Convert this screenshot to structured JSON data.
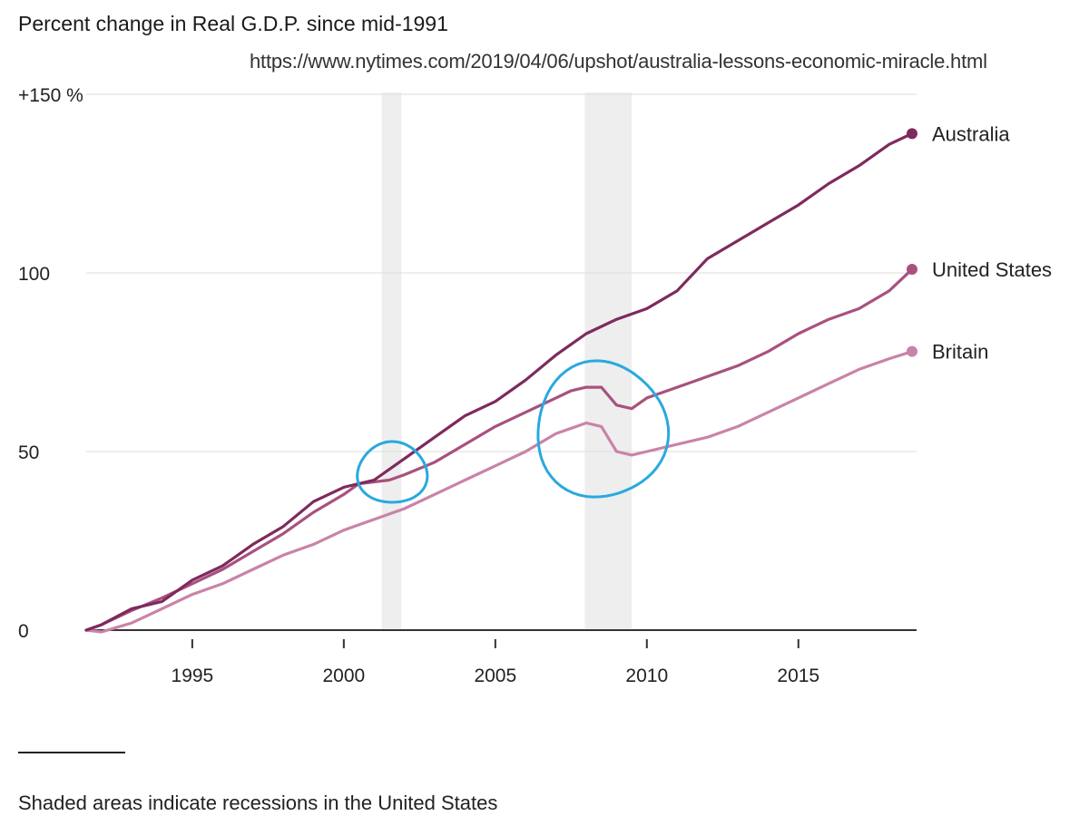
{
  "header": {
    "source_url": "https://www.nytimes.com/2019/04/06/upshot/australia-lessons-economic-miracle.html"
  },
  "footer": {
    "note": "Shaded areas indicate recessions in the United States"
  },
  "colors": {
    "australia": "#7e2a5d",
    "united_states": "#a8517f",
    "britain": "#c983a8",
    "recession_band": "#eeeeee",
    "gridline": "#dddddd",
    "axis": "#333333",
    "annotation_circle": "#29a9de"
  },
  "chart_data": {
    "type": "line",
    "title": "Percent change in Real G.D.P. since mid-1991",
    "xlabel": "",
    "ylabel": "",
    "xlim": [
      1991.5,
      2018.9
    ],
    "ylim": [
      0,
      150
    ],
    "x_ticks": [
      1995,
      2000,
      2005,
      2010,
      2015
    ],
    "x_tick_labels": [
      "1995",
      "2000",
      "2005",
      "2010",
      "2015"
    ],
    "y_ticks": [
      0,
      50,
      100,
      150
    ],
    "y_tick_labels": [
      "0",
      "50",
      "100",
      "+150 %"
    ],
    "grid": true,
    "legend": "end-of-line labels, right",
    "recessions": [
      {
        "start": 2001.25,
        "end": 2001.9
      },
      {
        "start": 2007.95,
        "end": 2009.5
      }
    ],
    "series": [
      {
        "name": "Australia",
        "color": "#7e2a5d",
        "x": [
          1991.5,
          1992,
          1993,
          1994,
          1995,
          1996,
          1997,
          1998,
          1999,
          2000,
          2001,
          2002,
          2003,
          2004,
          2005,
          2006,
          2007,
          2008,
          2009,
          2010,
          2011,
          2012,
          2013,
          2014,
          2015,
          2016,
          2017,
          2018,
          2018.75
        ],
        "values": [
          0,
          1.5,
          6,
          8,
          14,
          18,
          24,
          29,
          36,
          40,
          42,
          48,
          54,
          60,
          64,
          70,
          77,
          83,
          87,
          90,
          95,
          104,
          109,
          114,
          119,
          125,
          130,
          136,
          139
        ]
      },
      {
        "name": "United States",
        "color": "#a8517f",
        "x": [
          1991.5,
          1992,
          1993,
          1994,
          1995,
          1996,
          1997,
          1998,
          1999,
          2000,
          2000.5,
          2001,
          2001.5,
          2002,
          2003,
          2004,
          2005,
          2006,
          2007,
          2007.5,
          2008,
          2008.5,
          2009,
          2009.5,
          2010,
          2011,
          2012,
          2013,
          2014,
          2015,
          2016,
          2017,
          2018,
          2018.75
        ],
        "values": [
          0,
          1.5,
          5.5,
          9,
          13,
          17,
          22,
          27,
          33,
          38,
          41,
          41.5,
          42,
          43.5,
          47,
          52,
          57,
          61,
          65,
          67,
          68,
          68,
          63,
          62,
          65,
          68,
          71,
          74,
          78,
          83,
          87,
          90,
          95,
          101
        ]
      },
      {
        "name": "Britain",
        "color": "#c983a8",
        "x": [
          1991.5,
          1992,
          1993,
          1994,
          1995,
          1996,
          1997,
          1998,
          1999,
          2000,
          2001,
          2002,
          2003,
          2004,
          2005,
          2006,
          2007,
          2008,
          2008.5,
          2009,
          2009.5,
          2010,
          2011,
          2012,
          2013,
          2014,
          2015,
          2016,
          2017,
          2018,
          2018.75
        ],
        "values": [
          0,
          -0.5,
          2,
          6,
          10,
          13,
          17,
          21,
          24,
          28,
          31,
          34,
          38,
          42,
          46,
          50,
          55,
          58,
          57,
          50,
          49,
          50,
          52,
          54,
          57,
          61,
          65,
          69,
          73,
          76,
          78
        ]
      }
    ],
    "annotations": [
      {
        "type": "hand-drawn circle",
        "cx": 2001.6,
        "cy": 44,
        "rx": 1.15,
        "ry": 8.5
      },
      {
        "type": "hand-drawn circle",
        "cx": 2008.5,
        "cy": 56,
        "rx": 2.15,
        "ry": 19
      }
    ]
  }
}
